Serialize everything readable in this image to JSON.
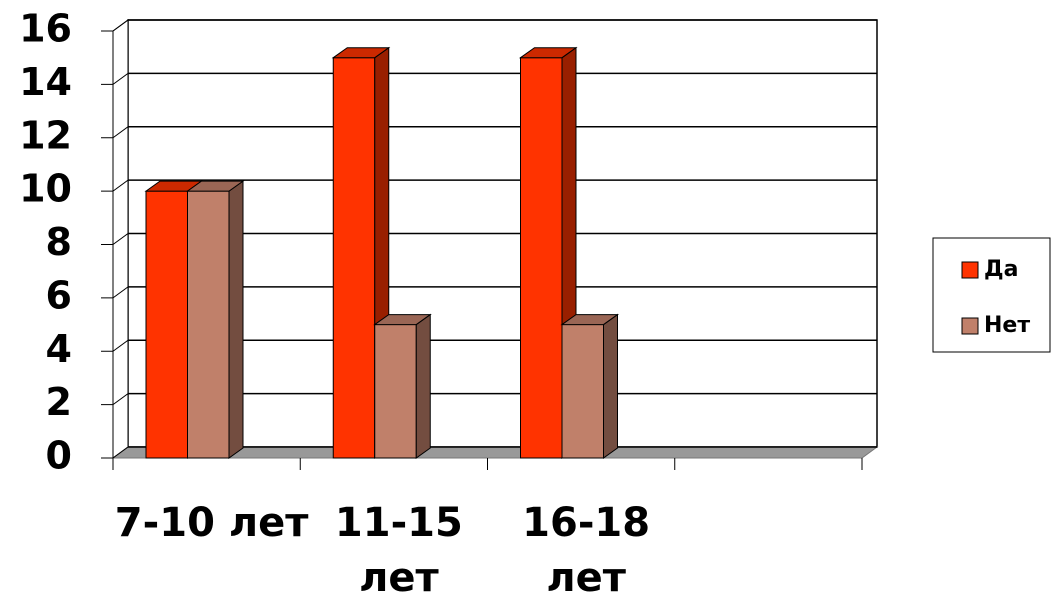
{
  "chart_data": {
    "type": "bar3d",
    "categories": [
      "7-10 лет",
      "11-15 лет",
      "16-18 лет",
      null
    ],
    "series": [
      {
        "name": "Да",
        "color": "#ff3300",
        "values": [
          10,
          15,
          15,
          null
        ]
      },
      {
        "name": "Нет",
        "color": "#c0806a",
        "values": [
          10,
          5,
          5,
          null
        ]
      }
    ],
    "ylim": [
      0,
      16
    ],
    "yticks": [
      0,
      2,
      4,
      6,
      8,
      10,
      12,
      14,
      16
    ],
    "grid": true,
    "legend": "right"
  }
}
